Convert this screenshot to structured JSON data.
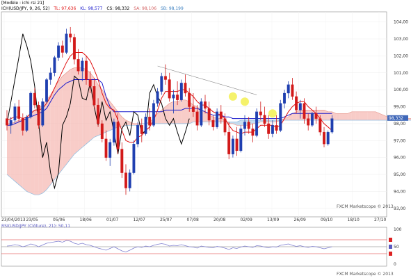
{
  "header": {
    "model": "[Modèle : ichi rsi 21]",
    "pair_label": "ICH(USD/JPY, 9, 26, 52)",
    "tl": "TL: 97,636",
    "kl": "KL: 98,577",
    "cs": "CS: 98,332",
    "sa": "SA: 98,106",
    "sb": "SB: 98,199"
  },
  "indicator_header": "RSI(USD/JPY (Clôture), 21): 50,11",
  "watermarks": {
    "main": "FXCM Marketscope © 2013",
    "sub": "FXCM Marketscope © 2013"
  },
  "colors": {
    "bull": "#1f3fb0",
    "bear": "#d21a1a",
    "tenkan": "#e01010",
    "kijun": "#1a1acc",
    "chikou": "#000000",
    "senkou_a": "#f5b7b0",
    "senkou_b": "#aecfe8",
    "rsi": "#7f7fd0",
    "highlight": "#f2ee3a"
  },
  "chart_data": {
    "type": "candlestick",
    "symbol": "USD/JPY",
    "ylim": [
      92.5,
      104.6
    ],
    "y_ticks": [
      "93,00",
      "94,00",
      "95,00",
      "96,00",
      "97,00",
      "98,00",
      "99,00",
      "100,00",
      "101,00",
      "102,00",
      "103,00",
      "104,00"
    ],
    "x_ticks": [
      "23/04/2013",
      "23/05",
      "05/06",
      "18/06",
      "01/07",
      "12/07",
      "25/07",
      "07/08",
      "20/08",
      "02/09",
      "13/09",
      "26/09",
      "09/10",
      "18/10",
      "27/10"
    ],
    "current_price_label": "98,332",
    "candles": [
      [
        98.3,
        98.8,
        97.6,
        97.9
      ],
      [
        97.9,
        98.4,
        97.4,
        98.2
      ],
      [
        98.2,
        99.2,
        98.0,
        99.0
      ],
      [
        99.0,
        99.4,
        98.1,
        98.3
      ],
      [
        98.3,
        98.6,
        97.3,
        97.6
      ],
      [
        97.6,
        98.5,
        97.5,
        98.4
      ],
      [
        98.4,
        99.9,
        98.3,
        99.8
      ],
      [
        99.8,
        100.1,
        98.9,
        99.1
      ],
      [
        99.1,
        99.3,
        97.7,
        97.9
      ],
      [
        97.9,
        99.5,
        97.8,
        99.3
      ],
      [
        99.3,
        100.7,
        99.2,
        100.6
      ],
      [
        100.6,
        101.3,
        100.3,
        101.0
      ],
      [
        101.0,
        102.0,
        100.8,
        101.9
      ],
      [
        101.9,
        102.8,
        101.7,
        102.6
      ],
      [
        102.6,
        102.9,
        101.9,
        102.2
      ],
      [
        102.2,
        103.6,
        102.1,
        103.3
      ],
      [
        103.3,
        103.7,
        102.8,
        103.1
      ],
      [
        103.1,
        103.3,
        101.5,
        101.8
      ],
      [
        101.8,
        102.4,
        100.9,
        101.1
      ],
      [
        101.1,
        101.9,
        100.5,
        101.7
      ],
      [
        101.7,
        102.0,
        100.3,
        100.6
      ],
      [
        100.6,
        101.1,
        99.8,
        100.2
      ],
      [
        100.2,
        100.7,
        98.9,
        99.1
      ],
      [
        99.1,
        99.5,
        97.8,
        98.0
      ],
      [
        98.0,
        98.2,
        96.9,
        97.1
      ],
      [
        97.1,
        97.6,
        95.8,
        96.0
      ],
      [
        96.0,
        97.1,
        95.5,
        96.9
      ],
      [
        96.9,
        98.3,
        96.7,
        98.1
      ],
      [
        98.1,
        98.6,
        96.2,
        96.5
      ],
      [
        96.5,
        96.9,
        94.8,
        95.1
      ],
      [
        95.1,
        95.6,
        93.8,
        94.2
      ],
      [
        94.2,
        95.3,
        94.0,
        95.1
      ],
      [
        95.1,
        97.0,
        95.0,
        96.8
      ],
      [
        96.8,
        98.1,
        96.6,
        97.9
      ],
      [
        97.9,
        98.3,
        96.9,
        97.4
      ],
      [
        97.4,
        98.6,
        97.3,
        98.4
      ],
      [
        98.4,
        98.9,
        97.6,
        97.9
      ],
      [
        97.9,
        99.4,
        97.8,
        99.2
      ],
      [
        99.2,
        100.1,
        99.0,
        99.9
      ],
      [
        99.9,
        101.0,
        99.7,
        100.8
      ],
      [
        100.8,
        101.5,
        100.3,
        100.6
      ],
      [
        100.6,
        101.0,
        99.3,
        99.5
      ],
      [
        99.5,
        100.0,
        98.6,
        99.7
      ],
      [
        99.7,
        100.5,
        99.1,
        99.4
      ],
      [
        99.4,
        100.6,
        99.3,
        100.4
      ],
      [
        100.4,
        100.9,
        99.6,
        99.8
      ],
      [
        99.8,
        100.1,
        98.7,
        99.0
      ],
      [
        99.0,
        99.8,
        98.4,
        98.7
      ],
      [
        98.7,
        99.1,
        97.6,
        97.9
      ],
      [
        97.9,
        99.5,
        97.8,
        99.3
      ],
      [
        99.3,
        99.7,
        98.6,
        98.9
      ],
      [
        98.9,
        99.3,
        97.9,
        98.2
      ],
      [
        98.2,
        98.5,
        97.6,
        97.8
      ],
      [
        97.8,
        98.9,
        97.7,
        98.7
      ],
      [
        98.7,
        99.1,
        98.0,
        98.3
      ],
      [
        98.3,
        98.6,
        97.3,
        97.5
      ],
      [
        97.5,
        98.1,
        95.9,
        96.2
      ],
      [
        96.2,
        97.3,
        96.0,
        97.1
      ],
      [
        97.1,
        97.8,
        96.1,
        96.4
      ],
      [
        96.4,
        97.9,
        96.3,
        97.7
      ],
      [
        97.7,
        98.5,
        97.3,
        98.1
      ],
      [
        98.1,
        98.4,
        97.4,
        97.7
      ],
      [
        97.7,
        98.0,
        96.9,
        97.3
      ],
      [
        97.3,
        98.9,
        97.2,
        98.7
      ],
      [
        98.7,
        99.3,
        98.2,
        98.5
      ],
      [
        98.5,
        99.0,
        97.8,
        98.0
      ],
      [
        98.0,
        98.5,
        97.1,
        97.4
      ],
      [
        97.4,
        98.2,
        97.2,
        97.9
      ],
      [
        97.9,
        98.5,
        97.4,
        97.6
      ],
      [
        97.6,
        99.4,
        97.5,
        99.2
      ],
      [
        99.2,
        100.0,
        98.9,
        99.8
      ],
      [
        99.8,
        100.5,
        99.5,
        100.3
      ],
      [
        100.3,
        100.7,
        99.4,
        99.6
      ],
      [
        99.6,
        99.9,
        98.6,
        98.8
      ],
      [
        98.8,
        99.4,
        98.3,
        99.2
      ],
      [
        99.2,
        99.5,
        98.0,
        98.3
      ],
      [
        98.3,
        98.6,
        97.6,
        97.9
      ],
      [
        97.9,
        98.7,
        97.8,
        98.6
      ],
      [
        98.6,
        99.0,
        98.0,
        98.3
      ],
      [
        98.3,
        98.5,
        97.3,
        97.5
      ],
      [
        97.5,
        97.8,
        96.6,
        96.8
      ],
      [
        96.8,
        97.6,
        96.7,
        97.5
      ],
      [
        97.5,
        98.5,
        97.4,
        98.3
      ]
    ],
    "tenkan": [
      98.2,
      98.3,
      98.4,
      98.4,
      98.3,
      98.4,
      98.6,
      98.8,
      98.8,
      98.9,
      99.2,
      99.6,
      100.1,
      100.6,
      101.1,
      101.6,
      102.0,
      102.2,
      102.2,
      102.2,
      102.0,
      101.7,
      101.2,
      100.6,
      99.8,
      99.2,
      98.9,
      98.8,
      98.2,
      97.6,
      97.0,
      96.9,
      96.9,
      97.2,
      97.3,
      97.6,
      97.8,
      98.2,
      98.8,
      99.5,
      99.9,
      99.9,
      99.9,
      99.9,
      100.0,
      100.0,
      99.8,
      99.6,
      99.3,
      99.1,
      99.1,
      98.9,
      98.7,
      98.6,
      98.5,
      98.3,
      97.9,
      97.6,
      97.5,
      97.4,
      97.5,
      97.5,
      97.5,
      97.7,
      97.9,
      97.9,
      97.9,
      97.9,
      97.8,
      97.9,
      98.3,
      98.7,
      99.0,
      99.2,
      99.3,
      99.3,
      99.0,
      98.8,
      98.6,
      98.3,
      98.0,
      97.8,
      97.6
    ],
    "kijun": [
      97.9,
      97.9,
      98.0,
      98.1,
      98.2,
      98.3,
      98.4,
      98.5,
      98.6,
      98.7,
      98.9,
      99.3,
      99.7,
      100.0,
      100.2,
      100.4,
      100.5,
      100.6,
      100.6,
      100.6,
      100.6,
      100.6,
      100.6,
      100.6,
      100.4,
      99.6,
      99.0,
      98.7,
      98.7,
      98.7,
      98.7,
      98.7,
      98.7,
      98.7,
      98.7,
      98.7,
      98.7,
      98.7,
      98.7,
      98.7,
      98.8,
      98.8,
      98.8,
      98.8,
      98.8,
      98.9,
      98.9,
      98.9,
      98.9,
      98.8,
      98.7,
      98.6,
      98.5,
      98.5,
      98.5,
      98.4,
      98.4,
      98.3,
      98.3,
      98.3,
      98.3,
      98.3,
      98.3,
      98.3,
      98.3,
      98.3,
      98.3,
      98.3,
      98.3,
      98.3,
      98.4,
      98.5,
      98.6,
      98.6,
      98.6,
      98.6,
      98.6,
      98.6,
      98.6,
      98.6,
      98.6,
      98.6,
      98.6
    ],
    "chikou": [
      98.0,
      99.3,
      100.6,
      101.9,
      103.3,
      102.6,
      101.7,
      100.2,
      98.0,
      96.0,
      96.9,
      95.1,
      94.2,
      95.1,
      97.9,
      98.4,
      99.2,
      100.8,
      100.6,
      99.5,
      99.4,
      100.4,
      99.0,
      97.9,
      99.3,
      98.2,
      98.7,
      97.5,
      96.2,
      97.7,
      98.1,
      97.3,
      98.7,
      98.5,
      97.4,
      97.6,
      99.8,
      100.3,
      99.6,
      99.2,
      98.3,
      97.9,
      98.3,
      97.5,
      96.8,
      97.5,
      98.3
    ],
    "senkou_a": [
      98.0,
      98.0,
      98.1,
      98.2,
      98.3,
      98.4,
      98.6,
      98.8,
      98.9,
      99.1,
      99.4,
      99.7,
      100.1,
      100.5,
      100.8,
      101.0,
      101.2,
      101.3,
      101.3,
      101.3,
      101.2,
      101.0,
      100.7,
      100.3,
      100.0,
      99.6,
      99.3,
      99.0,
      98.7,
      98.4,
      98.2,
      98.1,
      98.0,
      98.0,
      98.0,
      98.0,
      98.1,
      98.3,
      98.6,
      98.8,
      99.0,
      99.2,
      99.3,
      99.3,
      99.4,
      99.4,
      99.3,
      99.1,
      99.0,
      98.8,
      98.7,
      98.5,
      98.4,
      98.3,
      98.3,
      98.2,
      98.0,
      98.0,
      97.9,
      97.9,
      97.9,
      97.9,
      98.0,
      98.0,
      98.1,
      98.1,
      98.1,
      98.1,
      98.1,
      98.2,
      98.3,
      98.4,
      98.6,
      98.7,
      98.8,
      98.8,
      98.8,
      98.8,
      98.8,
      98.8,
      98.8,
      98.7,
      98.7,
      98.6,
      98.6,
      98.6,
      98.6,
      98.7,
      98.7,
      98.7,
      98.7,
      98.7,
      98.7,
      98.7,
      98.6,
      98.5,
      98.4,
      98.4,
      98.4,
      98.3,
      98.3,
      98.3,
      98.3,
      98.3,
      98.3,
      98.3,
      98.3,
      98.3,
      98.2
    ],
    "senkou_b": [
      95.0,
      94.8,
      94.6,
      94.4,
      94.2,
      94.0,
      93.9,
      93.8,
      93.8,
      93.9,
      94.1,
      94.4,
      94.7,
      95.0,
      95.3,
      95.6,
      95.9,
      96.2,
      96.4,
      96.6,
      96.8,
      97.0,
      97.2,
      97.3,
      97.4,
      97.5,
      97.6,
      97.7,
      97.8,
      97.8,
      97.9,
      97.9,
      97.9,
      97.9,
      98.0,
      98.0,
      98.0,
      98.0,
      98.0,
      98.0,
      98.0,
      98.0,
      98.0,
      98.0,
      98.0,
      98.0,
      98.0,
      98.1,
      98.1,
      98.1,
      98.1,
      98.1,
      98.1,
      98.1,
      98.1,
      98.1,
      98.1,
      98.1,
      98.1,
      98.2,
      98.2,
      98.2,
      98.2,
      98.2,
      98.2,
      98.2,
      98.2,
      98.2,
      98.2,
      98.2,
      98.2,
      98.2,
      98.2,
      98.2,
      98.2,
      98.2,
      98.2,
      98.2,
      98.2,
      98.2,
      98.2,
      98.2,
      98.2,
      98.2,
      98.2,
      98.2,
      98.2,
      98.2,
      98.2,
      98.2,
      98.2,
      98.2,
      98.2,
      98.2,
      98.2,
      98.2,
      98.2,
      98.2,
      98.2,
      98.2,
      98.2,
      98.2,
      98.2,
      98.2,
      98.2,
      98.2,
      98.2,
      98.2,
      98.2
    ],
    "trendline": [
      [
        38,
        101.4
      ],
      [
        63,
        99.7
      ]
    ],
    "rsi": {
      "ylim": [
        0,
        100
      ],
      "levels": [
        70,
        50,
        30
      ],
      "tick_labels": [
        "100",
        "50",
        "0"
      ],
      "values": [
        52,
        53,
        56,
        54,
        50,
        53,
        58,
        55,
        50,
        55,
        60,
        62,
        64,
        66,
        63,
        68,
        66,
        60,
        57,
        60,
        56,
        54,
        50,
        46,
        43,
        40,
        45,
        50,
        44,
        38,
        35,
        40,
        46,
        50,
        48,
        52,
        50,
        54,
        57,
        59,
        57,
        52,
        54,
        53,
        56,
        53,
        50,
        49,
        46,
        52,
        50,
        48,
        47,
        51,
        49,
        46,
        42,
        47,
        45,
        49,
        52,
        50,
        48,
        53,
        52,
        49,
        47,
        50,
        49,
        54,
        56,
        58,
        54,
        51,
        53,
        50,
        48,
        51,
        50,
        47,
        44,
        47,
        50
      ]
    }
  }
}
